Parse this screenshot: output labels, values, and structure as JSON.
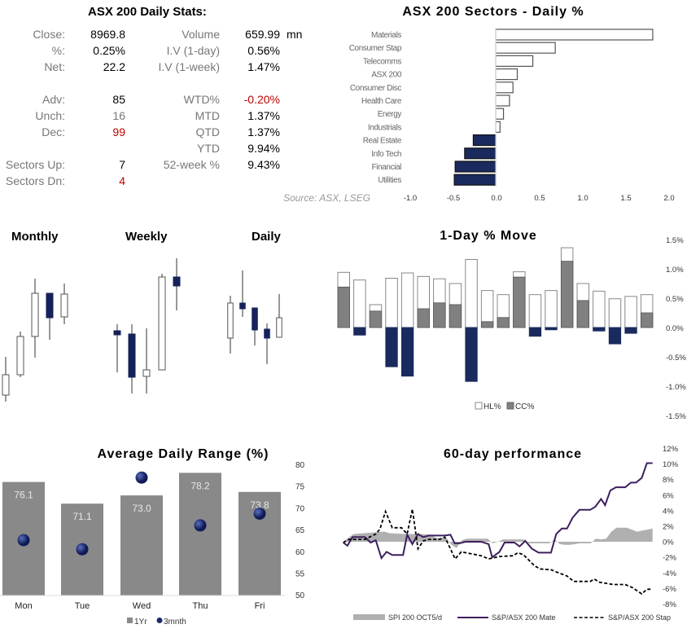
{
  "stats": {
    "title": "ASX 200 Daily Stats:",
    "left": [
      {
        "label": "Close:",
        "value": "8969.8"
      },
      {
        "label": "%:",
        "value": "0.25%"
      },
      {
        "label": "Net:",
        "value": "22.2"
      },
      {
        "label": "Adv:",
        "value": "85"
      },
      {
        "label": "Unch:",
        "value": "16"
      },
      {
        "label": "Dec:",
        "value": "99"
      },
      {
        "label": "",
        "value": ""
      },
      {
        "label": "Sectors Up:",
        "value": "7"
      },
      {
        "label": "Sectors Dn:",
        "value": "4"
      }
    ],
    "right": [
      {
        "label": "Volume",
        "value": "659.99",
        "unit": "mn"
      },
      {
        "label": "I.V (1-day)",
        "value": "0.56%"
      },
      {
        "label": "I.V (1-week)",
        "value": "1.47%"
      },
      {
        "label": "WTD%",
        "value": "-0.20%"
      },
      {
        "label": "MTD",
        "value": "1.37%"
      },
      {
        "label": "QTD",
        "value": "1.37%"
      },
      {
        "label": "YTD",
        "value": "9.94%"
      },
      {
        "label": "52-week %",
        "value": "9.43%"
      }
    ],
    "source": "Source: ASX, LSEG",
    "colors": {
      "negative": "#c00000",
      "label": "#777777",
      "unch": "#777777"
    }
  },
  "chart_data": [
    {
      "type": "bar",
      "orientation": "horizontal",
      "title": "ASX 200 Sectors - Daily %",
      "categories": [
        "Materials",
        "Consumer Stap",
        "Telecomms",
        "ASX 200",
        "Consumer Disc",
        "Health Care",
        "Energy",
        "Industrials",
        "Real Estate",
        "Info Tech",
        "Financial",
        "Utilities"
      ],
      "values": [
        1.82,
        0.69,
        0.43,
        0.25,
        0.2,
        0.16,
        0.09,
        0.05,
        -0.26,
        -0.36,
        -0.47,
        -0.48
      ],
      "xlim": [
        -1.0,
        2.0
      ],
      "xticks": [
        "-1.0",
        "-0.5",
        "0.0",
        "0.5",
        "1.0",
        "1.5",
        "2.0"
      ],
      "colors": {
        "positive": "#ffffff",
        "negative": "#1b2a5e"
      }
    },
    {
      "type": "candlestick",
      "title": "Monthly",
      "ohlc": [
        [
          15,
          62,
          7,
          40
        ],
        [
          40,
          93,
          37,
          87
        ],
        [
          87,
          158,
          61,
          140
        ],
        [
          140,
          140,
          83,
          110
        ],
        [
          111,
          152,
          102,
          139
        ]
      ]
    },
    {
      "type": "candlestick",
      "title": "Weekly",
      "ohlc": [
        [
          94,
          102,
          43,
          89
        ],
        [
          90,
          102,
          17,
          37
        ],
        [
          38,
          97,
          17,
          46
        ],
        [
          46,
          164,
          46,
          160
        ],
        [
          160,
          183,
          119,
          149
        ]
      ]
    },
    {
      "type": "candlestick",
      "title": "Daily",
      "ohlc": [
        [
          85,
          137,
          66,
          128
        ],
        [
          128,
          168,
          111,
          121
        ],
        [
          122,
          122,
          76,
          95
        ],
        [
          96,
          103,
          53,
          85
        ],
        [
          86,
          139,
          86,
          110
        ]
      ]
    },
    {
      "type": "bar",
      "title": "1-Day % Move",
      "series": [
        {
          "name": "HL%",
          "values": [
            0.94,
            0.81,
            0.39,
            0.84,
            0.93,
            0.87,
            0.83,
            0.75,
            1.16,
            0.63,
            0.56,
            0.95,
            0.56,
            0.63,
            1.36,
            0.75,
            0.62,
            0.49,
            0.53,
            0.56
          ]
        },
        {
          "name": "CC%",
          "values": [
            0.69,
            -0.13,
            0.28,
            -0.67,
            -0.83,
            0.32,
            0.42,
            0.39,
            -0.92,
            0.1,
            0.17,
            0.86,
            -0.15,
            -0.04,
            1.13,
            0.46,
            -0.06,
            -0.28,
            -0.1,
            0.25
          ]
        }
      ],
      "ylim": [
        -1.5,
        1.5
      ],
      "yticks": [
        "1.5%",
        "1.0%",
        "0.5%",
        "0.0%",
        "-0.5%",
        "-1.0%",
        "-1.5%"
      ],
      "legend": "bottom",
      "colors": {
        "HL%": "#ffffff",
        "CC%": "#808080",
        "negative": "#1b2a5e"
      }
    },
    {
      "type": "bar",
      "title": "Average Daily Range (%)",
      "categories": [
        "Mon",
        "Tue",
        "Wed",
        "Thu",
        "Fri"
      ],
      "series": [
        {
          "name": "1Yr",
          "values": [
            76.1,
            71.1,
            73.0,
            78.2,
            73.8
          ],
          "labels": [
            "76.1",
            "71.1",
            "73.0",
            "78.2",
            "73.8"
          ]
        },
        {
          "name": "3mnth",
          "values": [
            62.7,
            60.6,
            77.1,
            66.1,
            68.8
          ]
        }
      ],
      "ylim": [
        50,
        80
      ],
      "yticks": [
        "80",
        "75",
        "70",
        "65",
        "60",
        "55",
        "50"
      ],
      "legend": "bottom",
      "colors": {
        "1Yr": "#898989",
        "3mnth": "#1b2a6e"
      }
    },
    {
      "type": "line",
      "title": "60-day performance",
      "ylim": [
        -8,
        12
      ],
      "yticks": [
        "12%",
        "10%",
        "8%",
        "6%",
        "4%",
        "2%",
        "0%",
        "-2%",
        "-4%",
        "-6%",
        "-8%"
      ],
      "legend": "bottom",
      "series": [
        {
          "name": "SPI 200 OCT5/d",
          "style": "area",
          "color": "#b0b0b0",
          "x": [
            0,
            2,
            4,
            6,
            8,
            9,
            12,
            15,
            17,
            18,
            20,
            21,
            22,
            23,
            24,
            26,
            28,
            29,
            30,
            31,
            33,
            35,
            36,
            38,
            40,
            41,
            42,
            43,
            44,
            46,
            48,
            49,
            50,
            51,
            52,
            53,
            55,
            57,
            60
          ],
          "y": [
            0,
            1.0,
            1.1,
            1.2,
            1.3,
            1.1,
            1.0,
            1.0,
            0.9,
            0.5,
            0.5,
            -0.4,
            -0.8,
            0.2,
            0.4,
            0.4,
            0.4,
            -0.2,
            0,
            0.3,
            0.3,
            0.3,
            -0.2,
            -0.2,
            -0.2,
            0.3,
            -0.3,
            -0.4,
            -0.4,
            -0.2,
            -0.2,
            0.4,
            0.3,
            0.4,
            1.3,
            1.8,
            1.8,
            1.3,
            1.7
          ]
        },
        {
          "name": "S&P/ASX 200 Mate",
          "style": "solid",
          "color": "#3c1f5e",
          "x": [
            0,
            0.8,
            1.8,
            4.2,
            5.3,
            6.3,
            7.4,
            8.4,
            9.5,
            11.6,
            12.4,
            13.4,
            14.5,
            15.5,
            16.6,
            19.7,
            20.8,
            21.6,
            22.6,
            23.7,
            26.8,
            28.2,
            28.9,
            30.3,
            31.3,
            33.2,
            34.2,
            35.3,
            36.6,
            37.9,
            40.3,
            41.3,
            42.4,
            43.4,
            44.5,
            45.8,
            47.9,
            48.9,
            50.0,
            50.8,
            51.8,
            52.9,
            54.7,
            55.8,
            56.8,
            57.9,
            58.9,
            60
          ],
          "y": [
            -0.1,
            -0.5,
            0.6,
            0.6,
            -0.1,
            0.2,
            -2.1,
            -1.3,
            -1.7,
            -1.7,
            0.9,
            -0.3,
            1.0,
            0.6,
            0.8,
            0.8,
            0.9,
            -0.2,
            -0.2,
            0,
            0,
            -0.3,
            -2.0,
            -1.3,
            -0.1,
            -0.1,
            -0.6,
            0.1,
            -0.9,
            -1.4,
            -1.4,
            1.0,
            1.7,
            1.7,
            3.1,
            4.1,
            4.1,
            4.5,
            5.5,
            4.7,
            6.6,
            7.0,
            7.0,
            7.6,
            7.6,
            8.2,
            10.1,
            10.1
          ]
        },
        {
          "name": "S&P/ASX 200 Stap",
          "style": "dashed",
          "color": "#000000",
          "x": [
            0,
            1.1,
            4.2,
            6.3,
            7.1,
            8.2,
            9.5,
            11.3,
            12.4,
            13.4,
            14.5,
            15.5,
            16.6,
            18.7,
            19.7,
            20.8,
            21.7,
            22.9,
            25.3,
            26.8,
            28.2,
            30.3,
            32.9,
            33.9,
            35.0,
            37.1,
            38.2,
            40.3,
            41.8,
            43.4,
            44.7,
            47.9,
            48.7,
            49.7,
            52.4,
            54.7,
            56.1,
            57.9,
            58.9,
            60
          ],
          "y": [
            -0.1,
            0.3,
            0.3,
            1.0,
            1.6,
            3.9,
            1.8,
            1.8,
            1.0,
            4.2,
            -0.9,
            0.1,
            0.3,
            0.3,
            0.6,
            -0.9,
            -2.2,
            -1.3,
            -1.6,
            -1.8,
            -2.2,
            -1.9,
            -1.8,
            -1.4,
            -1.7,
            -3.1,
            -3.5,
            -3.6,
            -4.0,
            -4.4,
            -5.1,
            -5.1,
            -4.8,
            -5.2,
            -5.5,
            -5.5,
            -5.9,
            -6.7,
            -6.1,
            -6.1
          ]
        }
      ]
    }
  ]
}
